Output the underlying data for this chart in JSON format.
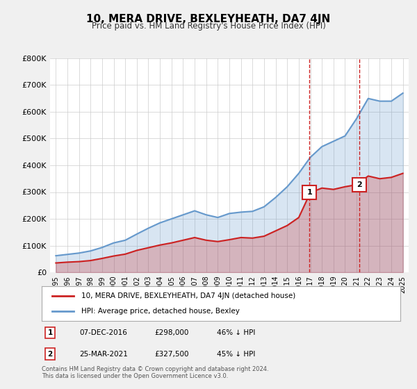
{
  "title": "10, MERA DRIVE, BEXLEYHEATH, DA7 4JN",
  "subtitle": "Price paid vs. HM Land Registry's House Price Index (HPI)",
  "hpi_years": [
    1995,
    1996,
    1997,
    1998,
    1999,
    2000,
    2001,
    2002,
    2003,
    2004,
    2005,
    2006,
    2007,
    2008,
    2009,
    2010,
    2011,
    2012,
    2013,
    2014,
    2015,
    2016,
    2017,
    2018,
    2019,
    2020,
    2021,
    2022,
    2023,
    2024,
    2025
  ],
  "hpi_values": [
    62000,
    67000,
    72000,
    80000,
    93000,
    110000,
    120000,
    143000,
    165000,
    185000,
    200000,
    215000,
    230000,
    215000,
    205000,
    220000,
    225000,
    228000,
    245000,
    280000,
    320000,
    370000,
    430000,
    470000,
    490000,
    510000,
    575000,
    650000,
    640000,
    640000,
    670000
  ],
  "price_years": [
    1995,
    1996,
    1997,
    1998,
    1999,
    2000,
    2001,
    2002,
    2003,
    2004,
    2005,
    2006,
    2007,
    2008,
    2009,
    2010,
    2011,
    2012,
    2013,
    2014,
    2015,
    2016,
    2017,
    2018,
    2019,
    2020,
    2021,
    2022,
    2023,
    2024,
    2025
  ],
  "price_values": [
    35000,
    38000,
    40000,
    44000,
    52000,
    61000,
    68000,
    82000,
    92000,
    102000,
    110000,
    120000,
    130000,
    120000,
    115000,
    122000,
    130000,
    128000,
    135000,
    155000,
    175000,
    205000,
    298000,
    315000,
    310000,
    320000,
    327500,
    360000,
    350000,
    355000,
    370000
  ],
  "marker1_x": 2016.92,
  "marker1_y": 298000,
  "marker2_x": 2021.25,
  "marker2_y": 327500,
  "marker1_label": "1",
  "marker2_label": "2",
  "hpi_color": "#6699CC",
  "price_color": "#CC2222",
  "marker_color": "#CC2222",
  "vline_color": "#CC2222",
  "ylim": [
    0,
    800000
  ],
  "yticks": [
    0,
    100000,
    200000,
    300000,
    400000,
    500000,
    600000,
    700000,
    800000
  ],
  "xtick_years": [
    1995,
    1996,
    1997,
    1998,
    1999,
    2000,
    2001,
    2002,
    2003,
    2004,
    2005,
    2006,
    2007,
    2008,
    2009,
    2010,
    2011,
    2012,
    2013,
    2014,
    2015,
    2016,
    2017,
    2018,
    2019,
    2020,
    2021,
    2022,
    2023,
    2024,
    2025
  ],
  "legend_label1": "10, MERA DRIVE, BEXLEYHEATH, DA7 4JN (detached house)",
  "legend_label2": "HPI: Average price, detached house, Bexley",
  "table_row1": [
    "1",
    "07-DEC-2016",
    "£298,000",
    "46% ↓ HPI"
  ],
  "table_row2": [
    "2",
    "25-MAR-2021",
    "£327,500",
    "45% ↓ HPI"
  ],
  "footnote": "Contains HM Land Registry data © Crown copyright and database right 2024.\nThis data is licensed under the Open Government Licence v3.0.",
  "bg_color": "#F0F0F0",
  "plot_bg_color": "#FFFFFF",
  "grid_color": "#CCCCCC"
}
